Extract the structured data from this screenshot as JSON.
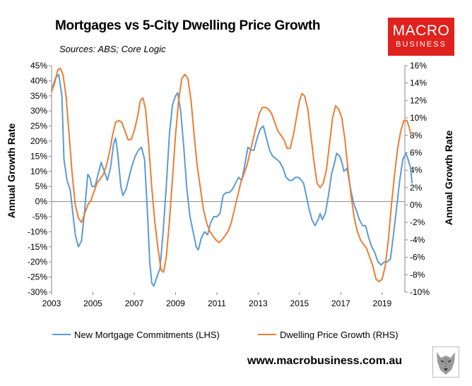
{
  "header": {
    "title": "Mortgages vs 5-City Dwelling Price Growth",
    "sources": "Sources: ABS; Core Logic"
  },
  "logo": {
    "line1": "MACRO",
    "line2": "BUSINESS"
  },
  "footer": {
    "website": "www.macrobusiness.com.au"
  },
  "colors": {
    "blue": "#5b9bd5",
    "orange": "#ed7d31",
    "logo_red": "#e0211d"
  },
  "chart_data": {
    "type": "line",
    "title": "Mortgages vs 5-City Dwelling Price Growth",
    "ylabel_left": "Annual Growth Rate",
    "ylabel_right": "Annual Growth Rate",
    "xlim": [
      2003,
      2020.1
    ],
    "ylim_left": [
      -30,
      45
    ],
    "ylim_right": [
      -10,
      16
    ],
    "x_ticks": [
      2003,
      2005,
      2007,
      2009,
      2011,
      2013,
      2015,
      2017,
      2019
    ],
    "y_ticks_left": [
      "-30%",
      "-25%",
      "-20%",
      "-15%",
      "-10%",
      "-5%",
      "0%",
      "5%",
      "10%",
      "15%",
      "20%",
      "25%",
      "30%",
      "35%",
      "40%",
      "45%"
    ],
    "y_ticks_right": [
      "-10%",
      "-8%",
      "-6%",
      "-4%",
      "-2%",
      "0%",
      "2%",
      "4%",
      "6%",
      "8%",
      "10%",
      "12%",
      "14%",
      "16%"
    ],
    "legend": [
      "New Mortgage Commitments (LHS)",
      "Dwelling Price Growth (RHS)"
    ],
    "series": [
      {
        "name": "New Mortgage Commitments (LHS)",
        "axis": "left",
        "color": "#5b9bd5",
        "points": [
          [
            2003.0,
            37
          ],
          [
            2003.2,
            41
          ],
          [
            2003.35,
            42
          ],
          [
            2003.5,
            35
          ],
          [
            2003.6,
            14
          ],
          [
            2003.75,
            7
          ],
          [
            2003.9,
            4
          ],
          [
            2004.0,
            -2
          ],
          [
            2004.15,
            -11
          ],
          [
            2004.3,
            -15
          ],
          [
            2004.45,
            -13
          ],
          [
            2004.6,
            -3
          ],
          [
            2004.75,
            9
          ],
          [
            2004.85,
            8
          ],
          [
            2004.95,
            5
          ],
          [
            2005.1,
            5
          ],
          [
            2005.25,
            9
          ],
          [
            2005.4,
            13
          ],
          [
            2005.55,
            10
          ],
          [
            2005.7,
            7
          ],
          [
            2005.85,
            11
          ],
          [
            2006.0,
            19
          ],
          [
            2006.1,
            21
          ],
          [
            2006.2,
            16
          ],
          [
            2006.35,
            5
          ],
          [
            2006.45,
            2
          ],
          [
            2006.6,
            4
          ],
          [
            2006.75,
            8
          ],
          [
            2006.9,
            12
          ],
          [
            2007.05,
            15
          ],
          [
            2007.2,
            17
          ],
          [
            2007.35,
            18
          ],
          [
            2007.5,
            14
          ],
          [
            2007.65,
            -5
          ],
          [
            2007.75,
            -20
          ],
          [
            2007.85,
            -27
          ],
          [
            2007.95,
            -28
          ],
          [
            2008.1,
            -25
          ],
          [
            2008.25,
            -22
          ],
          [
            2008.4,
            -10
          ],
          [
            2008.55,
            5
          ],
          [
            2008.7,
            22
          ],
          [
            2008.85,
            32
          ],
          [
            2009.0,
            35
          ],
          [
            2009.1,
            36
          ],
          [
            2009.25,
            30
          ],
          [
            2009.4,
            18
          ],
          [
            2009.55,
            4
          ],
          [
            2009.7,
            -5
          ],
          [
            2009.85,
            -10
          ],
          [
            2010.0,
            -15
          ],
          [
            2010.1,
            -16
          ],
          [
            2010.25,
            -12
          ],
          [
            2010.4,
            -10
          ],
          [
            2010.55,
            -11
          ],
          [
            2010.7,
            -7
          ],
          [
            2010.85,
            -5
          ],
          [
            2011.0,
            -5
          ],
          [
            2011.15,
            -4
          ],
          [
            2011.3,
            2
          ],
          [
            2011.45,
            3
          ],
          [
            2011.6,
            3
          ],
          [
            2011.75,
            4
          ],
          [
            2011.9,
            6
          ],
          [
            2012.05,
            8
          ],
          [
            2012.2,
            7
          ],
          [
            2012.35,
            12
          ],
          [
            2012.5,
            18
          ],
          [
            2012.65,
            17
          ],
          [
            2012.8,
            17
          ],
          [
            2012.95,
            21
          ],
          [
            2013.1,
            24
          ],
          [
            2013.25,
            25
          ],
          [
            2013.4,
            21
          ],
          [
            2013.55,
            17
          ],
          [
            2013.7,
            15
          ],
          [
            2013.9,
            14
          ],
          [
            2014.05,
            13
          ],
          [
            2014.2,
            11
          ],
          [
            2014.35,
            8
          ],
          [
            2014.5,
            7
          ],
          [
            2014.65,
            7
          ],
          [
            2014.8,
            8
          ],
          [
            2014.95,
            8
          ],
          [
            2015.1,
            7
          ],
          [
            2015.2,
            6
          ],
          [
            2015.3,
            3
          ],
          [
            2015.45,
            -2
          ],
          [
            2015.6,
            -6
          ],
          [
            2015.75,
            -8
          ],
          [
            2015.9,
            -6
          ],
          [
            2016.0,
            -4
          ],
          [
            2016.1,
            -6
          ],
          [
            2016.25,
            -4
          ],
          [
            2016.4,
            2
          ],
          [
            2016.55,
            9
          ],
          [
            2016.7,
            13
          ],
          [
            2016.8,
            16
          ],
          [
            2016.95,
            15
          ],
          [
            2017.05,
            13
          ],
          [
            2017.15,
            10
          ],
          [
            2017.3,
            11
          ],
          [
            2017.45,
            5
          ],
          [
            2017.6,
            0
          ],
          [
            2017.75,
            -3
          ],
          [
            2017.9,
            -6
          ],
          [
            2018.05,
            -8
          ],
          [
            2018.2,
            -8
          ],
          [
            2018.35,
            -12
          ],
          [
            2018.5,
            -15
          ],
          [
            2018.65,
            -17
          ],
          [
            2018.8,
            -20
          ],
          [
            2018.95,
            -21
          ],
          [
            2019.1,
            -20
          ],
          [
            2019.25,
            -20
          ],
          [
            2019.4,
            -19
          ],
          [
            2019.55,
            -11
          ],
          [
            2019.7,
            -2
          ],
          [
            2019.85,
            7
          ],
          [
            2020.0,
            14
          ],
          [
            2020.15,
            16
          ],
          [
            2020.25,
            14
          ],
          [
            2020.38,
            11
          ],
          [
            2020.45,
            6
          ]
        ]
      },
      {
        "name": "Dwelling Price Growth (RHS)",
        "axis": "right",
        "color": "#ed7d31",
        "points": [
          [
            2003.0,
            13
          ],
          [
            2003.15,
            14
          ],
          [
            2003.3,
            15.5
          ],
          [
            2003.42,
            15.7
          ],
          [
            2003.55,
            15
          ],
          [
            2003.7,
            12.5
          ],
          [
            2003.85,
            8
          ],
          [
            2004.0,
            3.5
          ],
          [
            2004.15,
            0
          ],
          [
            2004.3,
            -1.5
          ],
          [
            2004.45,
            -2
          ],
          [
            2004.6,
            -1
          ],
          [
            2004.75,
            0
          ],
          [
            2004.9,
            0.5
          ],
          [
            2005.05,
            1.5
          ],
          [
            2005.2,
            2.5
          ],
          [
            2005.35,
            3
          ],
          [
            2005.5,
            3.5
          ],
          [
            2005.65,
            4.5
          ],
          [
            2005.8,
            6
          ],
          [
            2005.95,
            8
          ],
          [
            2006.1,
            9.5
          ],
          [
            2006.25,
            9.7
          ],
          [
            2006.4,
            9.5
          ],
          [
            2006.55,
            8.5
          ],
          [
            2006.7,
            7.5
          ],
          [
            2006.85,
            7.5
          ],
          [
            2007.0,
            8.5
          ],
          [
            2007.15,
            10
          ],
          [
            2007.3,
            12
          ],
          [
            2007.42,
            12.3
          ],
          [
            2007.55,
            11
          ],
          [
            2007.7,
            7
          ],
          [
            2007.85,
            2
          ],
          [
            2008.0,
            -2
          ],
          [
            2008.15,
            -5
          ],
          [
            2008.3,
            -7.5
          ],
          [
            2008.42,
            -7.7
          ],
          [
            2008.55,
            -6
          ],
          [
            2008.7,
            -2
          ],
          [
            2008.85,
            3
          ],
          [
            2009.0,
            8
          ],
          [
            2009.15,
            12
          ],
          [
            2009.3,
            14.5
          ],
          [
            2009.45,
            15
          ],
          [
            2009.6,
            14.5
          ],
          [
            2009.75,
            12
          ],
          [
            2009.9,
            8
          ],
          [
            2010.05,
            4.5
          ],
          [
            2010.2,
            2
          ],
          [
            2010.35,
            -0.5
          ],
          [
            2010.5,
            -2
          ],
          [
            2010.65,
            -3
          ],
          [
            2010.8,
            -3.5
          ],
          [
            2010.95,
            -4
          ],
          [
            2011.1,
            -4.3
          ],
          [
            2011.25,
            -4
          ],
          [
            2011.4,
            -3.5
          ],
          [
            2011.55,
            -3
          ],
          [
            2011.7,
            -2
          ],
          [
            2011.85,
            -0.5
          ],
          [
            2012.0,
            1
          ],
          [
            2012.15,
            2.5
          ],
          [
            2012.3,
            3.5
          ],
          [
            2012.45,
            4.5
          ],
          [
            2012.6,
            6
          ],
          [
            2012.75,
            7.5
          ],
          [
            2012.9,
            9
          ],
          [
            2013.05,
            10.5
          ],
          [
            2013.2,
            11.2
          ],
          [
            2013.35,
            11.2
          ],
          [
            2013.5,
            11
          ],
          [
            2013.65,
            10.5
          ],
          [
            2013.8,
            9.5
          ],
          [
            2013.95,
            8.5
          ],
          [
            2014.1,
            8
          ],
          [
            2014.25,
            7.5
          ],
          [
            2014.4,
            6.5
          ],
          [
            2014.55,
            6.5
          ],
          [
            2014.7,
            8
          ],
          [
            2014.85,
            10
          ],
          [
            2015.0,
            12
          ],
          [
            2015.12,
            12.8
          ],
          [
            2015.25,
            12.5
          ],
          [
            2015.4,
            11
          ],
          [
            2015.55,
            8
          ],
          [
            2015.7,
            5
          ],
          [
            2015.85,
            2.5
          ],
          [
            2016.0,
            2
          ],
          [
            2016.15,
            2.5
          ],
          [
            2016.3,
            4
          ],
          [
            2016.45,
            7
          ],
          [
            2016.6,
            10
          ],
          [
            2016.75,
            11.4
          ],
          [
            2016.9,
            11
          ],
          [
            2017.05,
            10
          ],
          [
            2017.2,
            7.5
          ],
          [
            2017.35,
            4
          ],
          [
            2017.5,
            1
          ],
          [
            2017.65,
            -1.5
          ],
          [
            2017.8,
            -3
          ],
          [
            2017.95,
            -4
          ],
          [
            2018.1,
            -4.5
          ],
          [
            2018.25,
            -5
          ],
          [
            2018.4,
            -6
          ],
          [
            2018.55,
            -7
          ],
          [
            2018.7,
            -8.5
          ],
          [
            2018.85,
            -8.8
          ],
          [
            2019.0,
            -8.5
          ],
          [
            2019.15,
            -7
          ],
          [
            2019.3,
            -4
          ],
          [
            2019.45,
            0
          ],
          [
            2019.6,
            3.5
          ],
          [
            2019.75,
            6.5
          ],
          [
            2019.9,
            8.5
          ],
          [
            2020.05,
            9.7
          ],
          [
            2020.2,
            9.7
          ],
          [
            2020.3,
            9
          ],
          [
            2020.4,
            8
          ]
        ]
      }
    ]
  }
}
